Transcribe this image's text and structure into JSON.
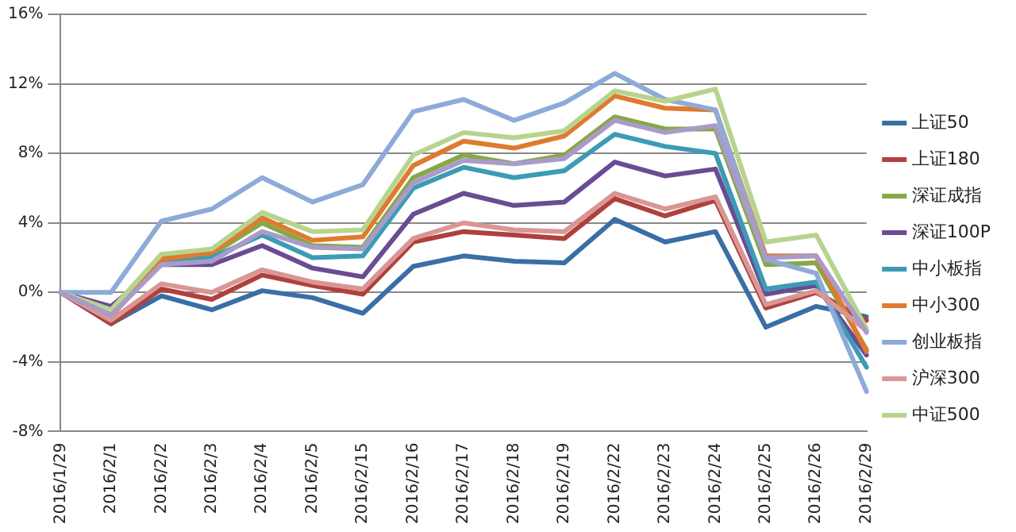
{
  "chart_data": {
    "type": "line",
    "categories": [
      "2016/1/29",
      "2016/2/1",
      "2016/2/2",
      "2016/2/3",
      "2016/2/4",
      "2016/2/5",
      "2016/2/15",
      "2016/2/16",
      "2016/2/17",
      "2016/2/18",
      "2016/2/19",
      "2016/2/22",
      "2016/2/23",
      "2016/2/24",
      "2016/2/25",
      "2016/2/26",
      "2016/2/29"
    ],
    "series": [
      {
        "name": "上证50",
        "color": "#3a6ea5",
        "values": [
          0,
          -1.8,
          -0.2,
          -1.0,
          0.1,
          -0.3,
          -1.2,
          1.5,
          2.1,
          1.8,
          1.7,
          4.2,
          2.9,
          3.5,
          -2.0,
          -0.8,
          -1.4
        ]
      },
      {
        "name": "上证180",
        "color": "#b0403d",
        "values": [
          0,
          -1.8,
          0.2,
          -0.4,
          1.0,
          0.4,
          -0.1,
          2.9,
          3.5,
          3.3,
          3.1,
          5.4,
          4.4,
          5.3,
          -0.9,
          0.0,
          -1.6
        ]
      },
      {
        "name": "深证成指",
        "color": "#86a845",
        "values": [
          0,
          -1.1,
          2.0,
          2.2,
          4.0,
          2.7,
          2.6,
          6.6,
          7.9,
          7.4,
          7.9,
          10.1,
          9.4,
          9.4,
          1.6,
          1.7,
          -3.3
        ]
      },
      {
        "name": "深证100P",
        "color": "#6a4c93",
        "values": [
          0,
          -0.8,
          1.6,
          1.6,
          2.7,
          1.4,
          0.9,
          4.5,
          5.7,
          5.0,
          5.2,
          7.5,
          6.7,
          7.1,
          -0.1,
          0.4,
          -3.6
        ]
      },
      {
        "name": "中小板指",
        "color": "#3c9bb5",
        "values": [
          0,
          -1.2,
          1.8,
          2.0,
          3.3,
          2.0,
          2.1,
          6.0,
          7.2,
          6.6,
          7.0,
          9.1,
          8.4,
          8.0,
          0.2,
          0.6,
          -4.3
        ]
      },
      {
        "name": "中小300",
        "color": "#e07a2e",
        "values": [
          0,
          -1.4,
          1.9,
          2.3,
          4.3,
          3.0,
          3.2,
          7.3,
          8.7,
          8.3,
          9.0,
          11.3,
          10.6,
          10.5,
          2.1,
          2.1,
          -3.4
        ]
      },
      {
        "name": "创业板指",
        "color": "#8eaad8",
        "values": [
          0,
          0,
          4.1,
          4.8,
          6.6,
          5.2,
          6.2,
          10.4,
          11.1,
          9.9,
          10.9,
          12.6,
          11.1,
          10.5,
          1.9,
          1.1,
          -5.7
        ]
      },
      {
        "name": "沪深300",
        "color": "#d99694",
        "values": [
          0,
          -1.6,
          0.5,
          0.0,
          1.3,
          0.6,
          0.2,
          3.1,
          4.0,
          3.6,
          3.5,
          5.7,
          4.8,
          5.5,
          -0.7,
          0.1,
          -2.2
        ]
      },
      {
        "name": "中证500",
        "color": "#b7d48e",
        "values": [
          0,
          -1.0,
          2.2,
          2.5,
          4.6,
          3.5,
          3.6,
          7.9,
          9.2,
          8.9,
          9.3,
          11.6,
          11.0,
          11.7,
          2.9,
          3.3,
          -2.1
        ]
      },
      {
        "color": "#a99bc9",
        "values": [
          0,
          -1.3,
          1.6,
          1.8,
          3.5,
          2.6,
          2.5,
          6.3,
          7.6,
          7.4,
          7.7,
          9.9,
          9.2,
          9.6,
          2.0,
          2.1,
          -2.3
        ]
      }
    ],
    "ylim": [
      -8,
      16
    ],
    "yticks": [
      {
        "value": -8,
        "label": "-8%"
      },
      {
        "value": -4,
        "label": "-4%"
      },
      {
        "value": 0,
        "label": "0%"
      },
      {
        "value": 4,
        "label": "4%"
      },
      {
        "value": 8,
        "label": "8%"
      },
      {
        "value": 12,
        "label": "12%"
      },
      {
        "value": 16,
        "label": "16%"
      }
    ],
    "grid": "y",
    "legend": "right",
    "marker": "none",
    "line_style": "solid"
  }
}
